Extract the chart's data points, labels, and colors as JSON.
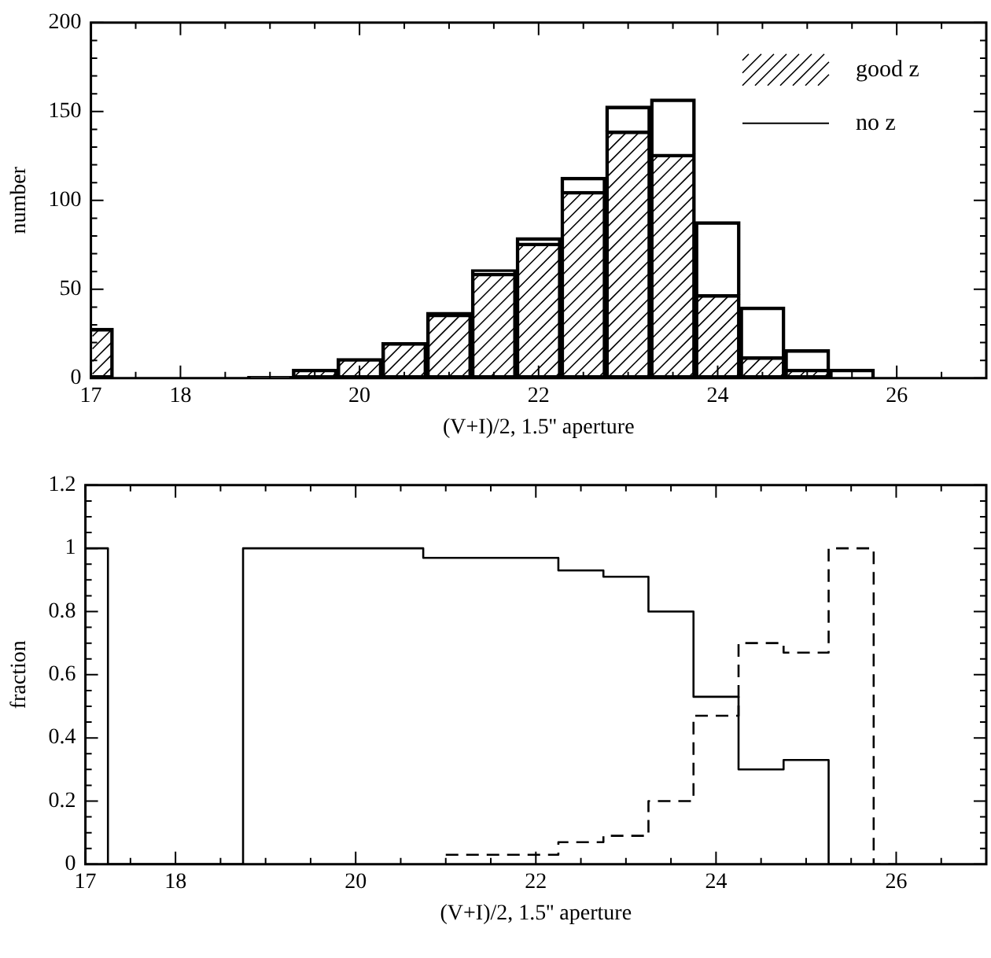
{
  "chart_data": [
    {
      "type": "bar",
      "xlabel": "(V+I)/2, 1.5'' aperture",
      "ylabel": "number",
      "legend": "top right",
      "x": [
        17,
        17.5,
        18,
        18.5,
        19,
        19.5,
        20,
        20.5,
        21,
        21.5,
        22,
        22.5,
        23,
        23.5,
        24,
        24.5,
        25,
        25.5,
        26,
        26.5
      ],
      "series": [
        {
          "name": "good z",
          "color": "#000000",
          "values": [
            28,
            0,
            0,
            0,
            1,
            5,
            11,
            20,
            36,
            59,
            76,
            105,
            139,
            126,
            47,
            12,
            5,
            0,
            0,
            0
          ]
        },
        {
          "name": "no z",
          "color": "#000000",
          "values": [
            0,
            0,
            0,
            0,
            0,
            0,
            0,
            0,
            1,
            2,
            3,
            8,
            14,
            31,
            41,
            28,
            11,
            5,
            0,
            0
          ]
        }
      ],
      "stacked": true,
      "xlim": [
        17,
        27
      ],
      "xticks": [
        17,
        {
          "value": 17.5,
          "label": null
        },
        18,
        {
          "value": 18.5,
          "label": null
        },
        {
          "value": 19,
          "label": null
        },
        {
          "value": 19.5,
          "label": null
        },
        20,
        {
          "value": 20.5,
          "label": null
        },
        {
          "value": 21,
          "label": null
        },
        {
          "value": 21.5,
          "label": null
        },
        22,
        {
          "value": 22.5,
          "label": null
        },
        {
          "value": 23,
          "label": null
        },
        {
          "value": 23.5,
          "label": null
        },
        24,
        {
          "value": 24.5,
          "label": null
        },
        {
          "value": 25,
          "label": null
        },
        {
          "value": 25.5,
          "label": null
        },
        26,
        {
          "value": 26.5,
          "label": null
        },
        {
          "value": 27,
          "label": null
        }
      ],
      "ylim": [
        0,
        200
      ],
      "yticks": [
        0,
        {
          "value": 10,
          "label": null
        },
        {
          "value": 20,
          "label": null
        },
        {
          "value": 30,
          "label": null
        },
        {
          "value": 40,
          "label": null
        },
        50,
        {
          "value": 60,
          "label": null
        },
        {
          "value": 70,
          "label": null
        },
        {
          "value": 80,
          "label": null
        },
        {
          "value": 90,
          "label": null
        },
        100,
        {
          "value": 110,
          "label": null
        },
        {
          "value": 120,
          "label": null
        },
        {
          "value": 130,
          "label": null
        },
        {
          "value": 140,
          "label": null
        },
        150,
        {
          "value": 160,
          "label": null
        },
        {
          "value": 170,
          "label": null
        },
        {
          "value": 180,
          "label": null
        },
        {
          "value": 190,
          "label": null
        },
        200
      ]
    },
    {
      "type": "step",
      "xlabel": "(V+I)/2, 1.5'' aperture",
      "ylabel": "fraction",
      "x": [
        17,
        17.5,
        18,
        18.5,
        19,
        19.5,
        20,
        20.5,
        21,
        21.5,
        22,
        22.5,
        23,
        23.5,
        24,
        24.5,
        25,
        25.5,
        26
      ],
      "series": [
        {
          "color": "#000000",
          "line_style": "solid",
          "values": [
            1,
            0,
            0,
            0,
            1,
            1,
            1,
            1,
            0.97,
            0.97,
            0.97,
            0.93,
            0.91,
            0.8,
            0.53,
            0.3,
            0.33,
            0,
            null
          ]
        },
        {
          "color": "#000000",
          "line_style": "dashed",
          "values": [
            null,
            null,
            null,
            null,
            null,
            null,
            null,
            null,
            0.03,
            0.03,
            0.03,
            0.07,
            0.09,
            0.2,
            0.47,
            0.7,
            0.67,
            1,
            0
          ]
        }
      ],
      "xlim": [
        17,
        27
      ],
      "xticks": [
        17,
        {
          "value": 17.5,
          "label": null
        },
        18,
        {
          "value": 18.5,
          "label": null
        },
        {
          "value": 19,
          "label": null
        },
        {
          "value": 19.5,
          "label": null
        },
        20,
        {
          "value": 20.5,
          "label": null
        },
        {
          "value": 21,
          "label": null
        },
        {
          "value": 21.5,
          "label": null
        },
        22,
        {
          "value": 22.5,
          "label": null
        },
        {
          "value": 23,
          "label": null
        },
        {
          "value": 23.5,
          "label": null
        },
        24,
        {
          "value": 24.5,
          "label": null
        },
        {
          "value": 25,
          "label": null
        },
        {
          "value": 25.5,
          "label": null
        },
        26,
        {
          "value": 26.5,
          "label": null
        },
        {
          "value": 27,
          "label": null
        }
      ],
      "ylim": [
        0,
        1.2
      ],
      "yticks": [
        0,
        {
          "value": 0.05,
          "label": null
        },
        {
          "value": 0.1,
          "label": null
        },
        {
          "value": 0.15,
          "label": null
        },
        0.2,
        {
          "value": 0.25,
          "label": null
        },
        {
          "value": 0.3,
          "label": null
        },
        {
          "value": 0.35,
          "label": null
        },
        0.4,
        {
          "value": 0.45,
          "label": null
        },
        {
          "value": 0.5,
          "label": null
        },
        {
          "value": 0.55,
          "label": null
        },
        0.6,
        {
          "value": 0.65,
          "label": null
        },
        {
          "value": 0.7,
          "label": null
        },
        {
          "value": 0.75,
          "label": null
        },
        0.8,
        {
          "value": 0.85,
          "label": null
        },
        {
          "value": 0.9,
          "label": null
        },
        {
          "value": 0.95,
          "label": null
        },
        1,
        {
          "value": 1.05,
          "label": null
        },
        {
          "value": 1.1,
          "label": null
        },
        {
          "value": 1.15,
          "label": null
        },
        1.2
      ]
    }
  ]
}
